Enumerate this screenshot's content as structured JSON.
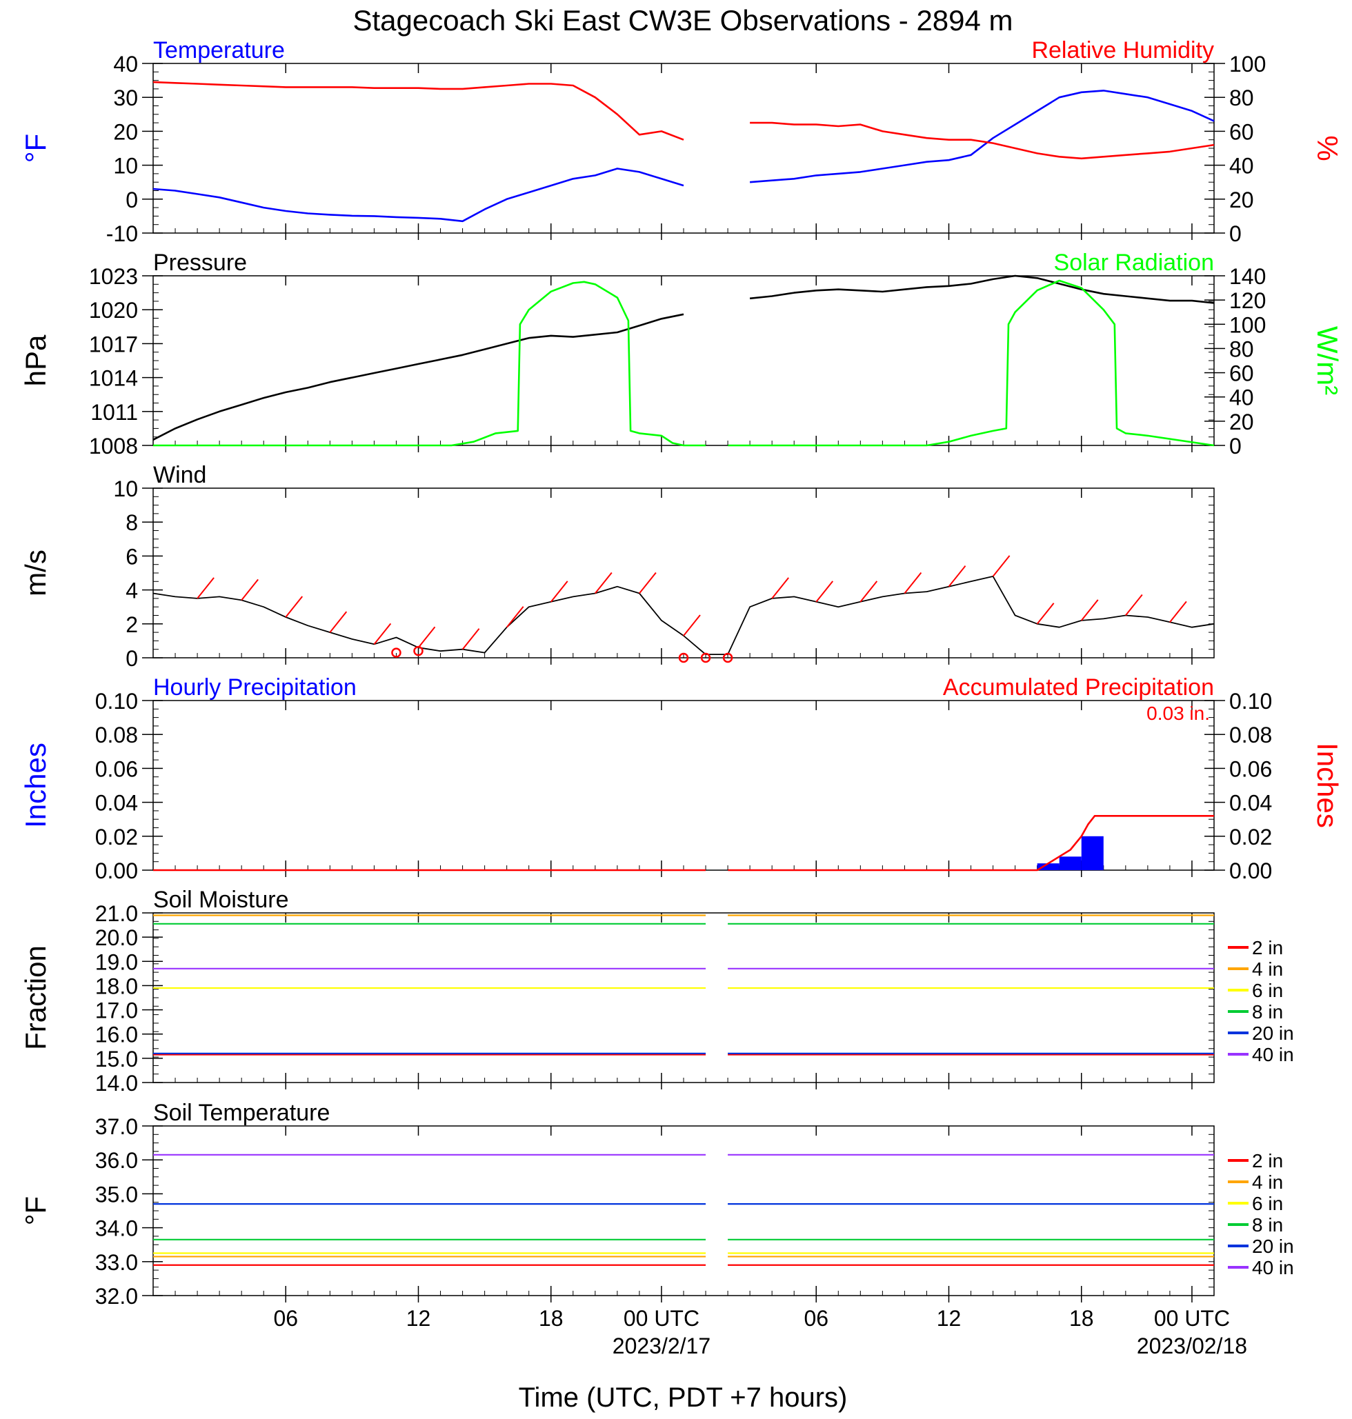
{
  "title": "Stagecoach Ski East CW3E Observations - 2894 m",
  "colors": {
    "blue": "#0000ff",
    "red": "#ff0000",
    "green": "#00ff00",
    "black": "#000000",
    "orange": "#ffa500",
    "yellow": "#ffff00",
    "green8": "#00cc33",
    "purple": "#9933ff",
    "blue20": "#0033dd"
  },
  "x_axis": {
    "label": "Time (UTC, PDT +7 hours)",
    "range_hours": [
      0,
      48
    ],
    "ticks": [
      {
        "t": 6,
        "label": "06"
      },
      {
        "t": 12,
        "label": "12"
      },
      {
        "t": 18,
        "label": "18"
      },
      {
        "t": 23,
        "label": "00 UTC",
        "sublabel": "2023/2/17"
      },
      {
        "t": 30,
        "label": "06"
      },
      {
        "t": 36,
        "label": "12"
      },
      {
        "t": 42,
        "label": "18"
      },
      {
        "t": 47,
        "label": "00 UTC",
        "sublabel": "2023/02/18"
      }
    ],
    "data_gap": [
      25.0,
      26.0
    ]
  },
  "chart_data": [
    {
      "type": "line",
      "panel": "temperature-rh",
      "left_title": "Temperature",
      "right_title": "Relative Humidity",
      "left_axis": {
        "unit_label": "°F",
        "ylim": [
          -10,
          40
        ],
        "ticks": [
          "-10",
          "0",
          "10",
          "20",
          "30",
          "40"
        ]
      },
      "right_axis": {
        "unit_label": "%",
        "ylim": [
          0,
          100
        ],
        "ticks": [
          "0",
          "20",
          "40",
          "60",
          "80",
          "100"
        ]
      },
      "series": [
        {
          "name": "Temperature",
          "axis": "left",
          "color": "#0000ff",
          "x": [
            0,
            1,
            2,
            3,
            4,
            5,
            6,
            7,
            8,
            9,
            10,
            11,
            12,
            13,
            14,
            15,
            16,
            17,
            18,
            19,
            20,
            21,
            22,
            23,
            24,
            25,
            26,
            27,
            28,
            29,
            30,
            31,
            32,
            33,
            34,
            35,
            36,
            37,
            38,
            39,
            40,
            41,
            42,
            43,
            44,
            45,
            46,
            47,
            48
          ],
          "y": [
            3,
            2.5,
            1.5,
            0.5,
            -1,
            -2.5,
            -3.5,
            -4.2,
            -4.6,
            -4.9,
            -5,
            -5.3,
            -5.5,
            -5.8,
            -6.5,
            -3,
            0,
            2,
            4,
            6,
            7,
            9,
            8,
            6,
            4,
            null,
            null,
            5,
            5.5,
            6,
            7,
            7.5,
            8,
            9,
            10,
            11,
            11.5,
            13,
            18,
            22,
            26,
            30,
            31.5,
            32,
            31,
            30,
            28,
            26,
            23
          ]
        },
        {
          "name": "Relative Humidity",
          "axis": "right",
          "color": "#ff0000",
          "x": [
            0,
            1,
            2,
            3,
            4,
            5,
            6,
            7,
            8,
            9,
            10,
            11,
            12,
            13,
            14,
            15,
            16,
            17,
            18,
            19,
            20,
            21,
            22,
            23,
            24,
            25,
            26,
            27,
            28,
            29,
            30,
            31,
            32,
            33,
            34,
            35,
            36,
            37,
            38,
            39,
            40,
            41,
            42,
            43,
            44,
            45,
            46,
            47,
            48
          ],
          "y": [
            89,
            88.5,
            88,
            87.5,
            87,
            86.5,
            86,
            86,
            86,
            86,
            85.5,
            85.5,
            85.5,
            85,
            85,
            86,
            87,
            88,
            88,
            87,
            80,
            70,
            58,
            60,
            55,
            null,
            null,
            65,
            65,
            64,
            64,
            63,
            64,
            60,
            58,
            56,
            55,
            55,
            53,
            50,
            47,
            45,
            44,
            45,
            46,
            47,
            48,
            50,
            52
          ]
        }
      ]
    },
    {
      "type": "line",
      "panel": "pressure-solar",
      "left_title": "Pressure",
      "right_title": "Solar Radiation",
      "left_axis": {
        "unit_label": "hPa",
        "ylim": [
          1008,
          1023
        ],
        "ticks": [
          "1008",
          "1011",
          "1014",
          "1017",
          "1020",
          "1023"
        ]
      },
      "right_axis": {
        "unit_label": "W/m²",
        "ylim": [
          0,
          140
        ],
        "ticks": [
          "0",
          "20",
          "40",
          "60",
          "80",
          "100",
          "120",
          "140"
        ]
      },
      "series": [
        {
          "name": "Pressure",
          "axis": "left",
          "color": "#000000",
          "x": [
            0,
            1,
            2,
            3,
            4,
            5,
            6,
            7,
            8,
            9,
            10,
            11,
            12,
            13,
            14,
            15,
            16,
            17,
            18,
            19,
            20,
            21,
            22,
            23,
            24,
            25,
            26,
            27,
            28,
            29,
            30,
            31,
            32,
            33,
            34,
            35,
            36,
            37,
            38,
            39,
            40,
            41,
            42,
            43,
            44,
            45,
            46,
            47,
            48
          ],
          "y": [
            1008.5,
            1009.5,
            1010.3,
            1011,
            1011.6,
            1012.2,
            1012.7,
            1013.1,
            1013.6,
            1014,
            1014.4,
            1014.8,
            1015.2,
            1015.6,
            1016,
            1016.5,
            1017,
            1017.5,
            1017.7,
            1017.6,
            1017.8,
            1018,
            1018.6,
            1019.2,
            1019.6,
            null,
            null,
            1021,
            1021.2,
            1021.5,
            1021.7,
            1021.8,
            1021.7,
            1021.6,
            1021.8,
            1022,
            1022.1,
            1022.3,
            1022.7,
            1023,
            1022.8,
            1022.3,
            1021.8,
            1021.4,
            1021.2,
            1021,
            1020.8,
            1020.8,
            1020.6
          ]
        },
        {
          "name": "Solar Radiation",
          "axis": "right",
          "color": "#00ff00",
          "x": [
            0,
            13.5,
            14.5,
            15.5,
            16.5,
            16.6,
            17,
            18,
            19,
            19.5,
            20,
            21,
            21.5,
            21.6,
            22,
            23,
            23.5,
            24,
            25,
            25.01,
            26,
            26.01,
            35,
            36,
            37,
            38,
            38.6,
            38.7,
            39,
            40,
            41,
            42,
            43,
            43.5,
            43.6,
            44,
            45,
            48
          ],
          "y": [
            0,
            0,
            3,
            10,
            12,
            100,
            112,
            127,
            134,
            135,
            133,
            122,
            103,
            12,
            10,
            8,
            2,
            0,
            0,
            null,
            null,
            0,
            0,
            3,
            8,
            12,
            14,
            100,
            110,
            128,
            136,
            130,
            112,
            100,
            14,
            10,
            8,
            0
          ]
        }
      ]
    },
    {
      "type": "line",
      "panel": "wind",
      "left_title": "Wind",
      "left_axis": {
        "unit_label": "m/s",
        "ylim": [
          0,
          10
        ],
        "ticks": [
          "0",
          "2",
          "4",
          "6",
          "8",
          "10"
        ]
      },
      "series": [
        {
          "name": "Wind",
          "color": "#000000",
          "x": [
            0,
            1,
            2,
            3,
            4,
            5,
            6,
            7,
            8,
            9,
            10,
            11,
            12,
            13,
            14,
            15,
            16,
            17,
            18,
            19,
            20,
            21,
            22,
            23,
            24,
            25,
            26,
            27,
            28,
            29,
            30,
            31,
            32,
            33,
            34,
            35,
            36,
            37,
            38,
            39,
            40,
            41,
            42,
            43,
            44,
            45,
            46,
            47,
            48
          ],
          "y": [
            3.8,
            3.6,
            3.5,
            3.6,
            3.4,
            3,
            2.4,
            1.9,
            1.5,
            1.1,
            0.8,
            1.2,
            0.6,
            0.4,
            0.5,
            0.3,
            1.8,
            3,
            3.3,
            3.6,
            3.8,
            4.2,
            3.8,
            2.2,
            1.3,
            0.2,
            0.2,
            3,
            3.5,
            3.6,
            3.3,
            3,
            3.3,
            3.6,
            3.8,
            3.9,
            4.2,
            4.5,
            4.8,
            2.5,
            2,
            1.8,
            2.2,
            2.3,
            2.5,
            2.4,
            2.1,
            1.8,
            2
          ]
        },
        {
          "name": "Calm",
          "type": "markers",
          "color": "#ff0000",
          "x": [
            11,
            12,
            24,
            25,
            26
          ],
          "y": [
            0.3,
            0.4,
            0,
            0,
            0
          ]
        }
      ]
    },
    {
      "type": "bar",
      "panel": "precipitation",
      "left_title": "Hourly Precipitation",
      "right_title": "Accumulated Precipitation",
      "total_label": "0.03 in.",
      "left_axis": {
        "unit_label": "Inches",
        "ylim": [
          0,
          0.1
        ],
        "ticks": [
          "0.00",
          "0.02",
          "0.04",
          "0.06",
          "0.08",
          "0.10"
        ]
      },
      "right_axis": {
        "unit_label": "Inches",
        "ylim": [
          0,
          0.1
        ],
        "ticks": [
          "0.00",
          "0.02",
          "0.04",
          "0.06",
          "0.08",
          "0.10"
        ]
      },
      "series": [
        {
          "name": "Hourly Precipitation",
          "color": "#0000ff",
          "x": [
            40,
            41,
            42
          ],
          "values": [
            0.004,
            0.008,
            0.02
          ]
        },
        {
          "name": "Accumulated Precipitation",
          "color": "#ff0000",
          "x": [
            0,
            25,
            25.01,
            26,
            26.01,
            40,
            40.5,
            41,
            41.5,
            42,
            42.3,
            42.6,
            48
          ],
          "y": [
            0,
            0,
            null,
            null,
            0,
            0,
            0.004,
            0.008,
            0.012,
            0.02,
            0.027,
            0.032,
            0.032
          ]
        }
      ]
    },
    {
      "type": "line",
      "panel": "soil-moisture",
      "left_title": "Soil Moisture",
      "left_axis": {
        "unit_label": "Fraction",
        "ylim": [
          14,
          21
        ],
        "ticks": [
          "14.0",
          "15.0",
          "16.0",
          "17.0",
          "18.0",
          "19.0",
          "20.0",
          "21.0"
        ]
      },
      "legend": [
        "2 in",
        "4 in",
        "6 in",
        "8 in",
        "20 in",
        "40 in"
      ],
      "series": [
        {
          "name": "2 in",
          "color": "#ff0000",
          "level": 15.15
        },
        {
          "name": "4 in",
          "color": "#ffa500",
          "level": 20.9
        },
        {
          "name": "6 in",
          "color": "#ffff00",
          "level": 17.9
        },
        {
          "name": "8 in",
          "color": "#00cc33",
          "level": 20.55
        },
        {
          "name": "20 in",
          "color": "#0033dd",
          "level": 15.2
        },
        {
          "name": "40 in",
          "color": "#9933ff",
          "level": 18.7
        }
      ]
    },
    {
      "type": "line",
      "panel": "soil-temperature",
      "left_title": "Soil Temperature",
      "left_axis": {
        "unit_label": "°F",
        "ylim": [
          32,
          37
        ],
        "ticks": [
          "32.0",
          "33.0",
          "34.0",
          "35.0",
          "36.0",
          "37.0"
        ]
      },
      "legend": [
        "2 in",
        "4 in",
        "6 in",
        "8 in",
        "20 in",
        "40 in"
      ],
      "series": [
        {
          "name": "2 in",
          "color": "#ff0000",
          "level": 32.9
        },
        {
          "name": "4 in",
          "color": "#ffa500",
          "level": 33.15
        },
        {
          "name": "6 in",
          "color": "#ffff00",
          "level": 33.25
        },
        {
          "name": "8 in",
          "color": "#00cc33",
          "level": 33.65
        },
        {
          "name": "20 in",
          "color": "#0033dd",
          "level": 34.7
        },
        {
          "name": "40 in",
          "color": "#9933ff",
          "level": 36.15
        }
      ]
    }
  ]
}
